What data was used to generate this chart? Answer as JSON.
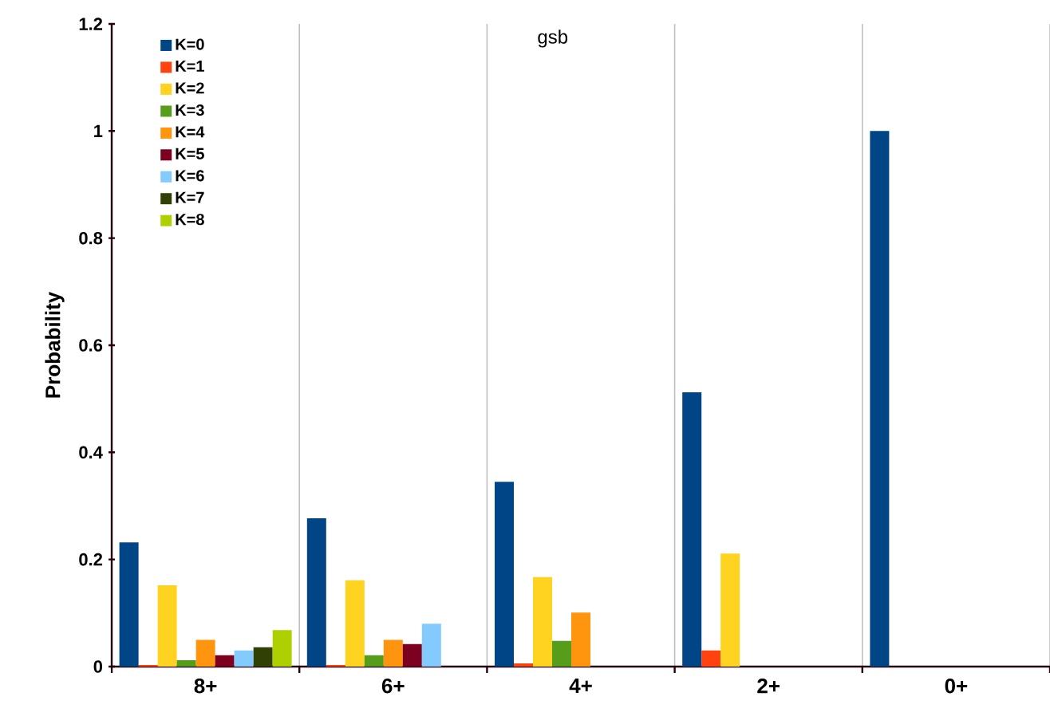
{
  "chart_data": {
    "type": "bar",
    "title": "gsb",
    "ylabel": "Probability",
    "categories": [
      "8+",
      "6+",
      "4+",
      "2+",
      "0+"
    ],
    "series": [
      {
        "name": "K=0",
        "color": "#004586",
        "values": [
          0.232,
          0.277,
          0.345,
          0.512,
          1.0
        ]
      },
      {
        "name": "K=1",
        "color": "#ff420e",
        "values": [
          0.003,
          0.003,
          0.006,
          0.03,
          0
        ]
      },
      {
        "name": "K=2",
        "color": "#ffd320",
        "values": [
          0.152,
          0.161,
          0.167,
          0.211,
          0
        ]
      },
      {
        "name": "K=3",
        "color": "#579d1c",
        "values": [
          0.012,
          0.021,
          0.048,
          0,
          0
        ]
      },
      {
        "name": "K=4",
        "color": "#ff950e",
        "values": [
          0.05,
          0.05,
          0.101,
          0,
          0
        ]
      },
      {
        "name": "K=5",
        "color": "#7e0021",
        "values": [
          0.021,
          0.042,
          0,
          0,
          0
        ]
      },
      {
        "name": "K=6",
        "color": "#83caff",
        "values": [
          0.03,
          0.08,
          0,
          0,
          0
        ]
      },
      {
        "name": "K=7",
        "color": "#314004",
        "values": [
          0.036,
          0,
          0,
          0,
          0
        ]
      },
      {
        "name": "K=8",
        "color": "#aecf00",
        "values": [
          0.068,
          0,
          0,
          0,
          0
        ]
      }
    ],
    "ylim": [
      0,
      1.2
    ],
    "yticks": [
      0,
      0.2,
      0.4,
      0.6,
      0.8,
      1,
      1.2
    ],
    "grid": "x",
    "legend": "top left"
  }
}
